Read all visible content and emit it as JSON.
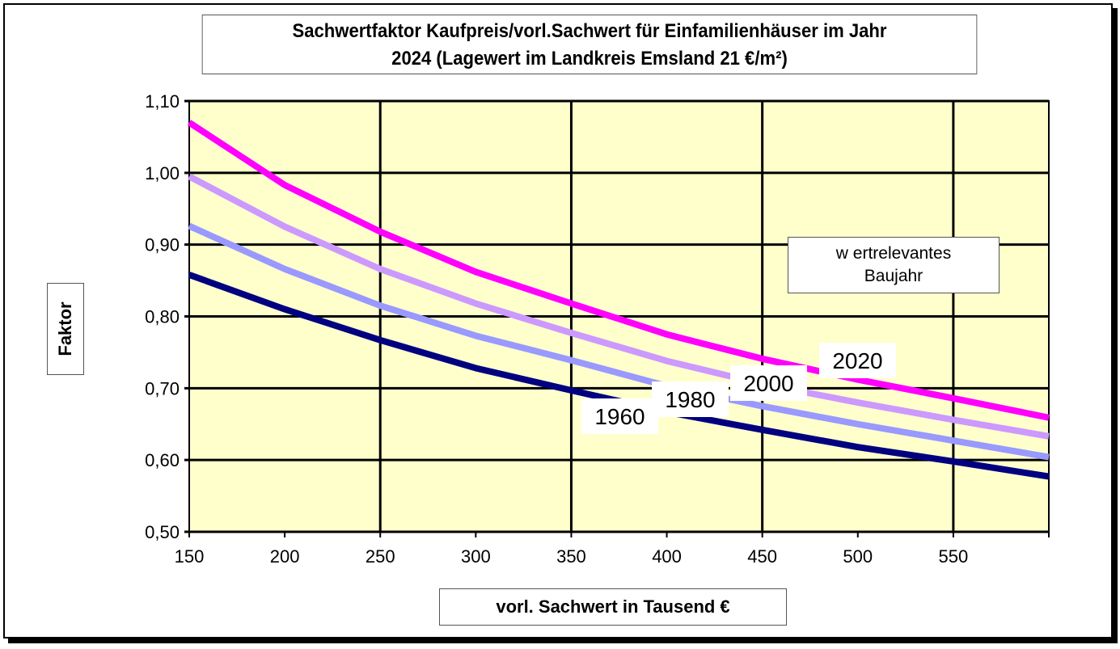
{
  "chart_data": {
    "type": "line",
    "title": "Sachwertfaktor Kaufpreis/vorl.Sachwert für Einfamilienhäuser  im Jahr 2024 (Lagewert im Landkreis Emsland  21 €/m²)",
    "title_lines": [
      "Sachwertfaktor Kaufpreis/vorl.Sachwert für Einfamilienhäuser  im Jahr",
      "2024 (Lagewert im Landkreis Emsland  21 €/m²)"
    ],
    "xlabel": "vorl.  Sachwert in Tausend €",
    "ylabel": "Faktor",
    "legend_title": [
      "w ertrelevantes",
      "Baujahr"
    ],
    "xlim": [
      150,
      600
    ],
    "ylim": [
      0.5,
      1.1
    ],
    "x_ticks": [
      150,
      200,
      250,
      300,
      350,
      400,
      450,
      500,
      550
    ],
    "y_ticks": [
      "0,50",
      "0,60",
      "0,70",
      "0,80",
      "0,90",
      "1,00",
      "1,10"
    ],
    "x_gridlines": [
      250,
      350,
      450,
      550
    ],
    "grid": true,
    "background": "#FFFFCC",
    "x": [
      150,
      200,
      250,
      300,
      350,
      400,
      450,
      500,
      550,
      600
    ],
    "series": [
      {
        "name": "2020",
        "color": "#FF00FF",
        "values": [
          1.07,
          0.983,
          0.918,
          0.862,
          0.818,
          0.775,
          0.741,
          0.712,
          0.686,
          0.659
        ]
      },
      {
        "name": "2000",
        "color": "#CC99FF",
        "values": [
          0.995,
          0.925,
          0.866,
          0.818,
          0.777,
          0.738,
          0.706,
          0.68,
          0.656,
          0.633
        ]
      },
      {
        "name": "1980",
        "color": "#9999FF",
        "values": [
          0.926,
          0.866,
          0.815,
          0.773,
          0.739,
          0.703,
          0.675,
          0.65,
          0.627,
          0.604
        ]
      },
      {
        "name": "1960",
        "color": "#000080",
        "values": [
          0.858,
          0.81,
          0.767,
          0.728,
          0.697,
          0.667,
          0.642,
          0.618,
          0.598,
          0.577
        ]
      }
    ]
  }
}
